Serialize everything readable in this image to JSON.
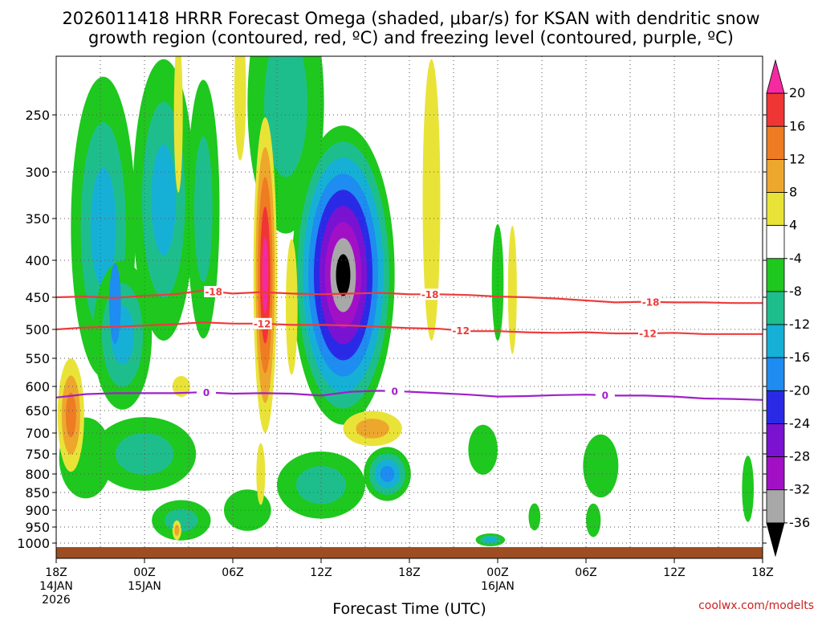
{
  "chart_data": {
    "type": "contour",
    "title_line1": "2026011418 HRRR Forecast Omega (shaded, μbar/s) for KSAN with dendritic snow",
    "title_line2": "growth region (contoured, red, ºC) and freezing level (contoured, purple, ºC)",
    "xlabel": "Forecast Time (UTC)",
    "credit": "coolwx.com/modelts",
    "x_range": [
      0,
      48
    ],
    "pressure_levels": [
      250,
      300,
      350,
      400,
      450,
      500,
      550,
      600,
      650,
      700,
      750,
      800,
      850,
      900,
      950,
      1000
    ],
    "y_tick_labels": [
      "250",
      "300",
      "350",
      "400",
      "450",
      "500",
      "550",
      "600",
      "650",
      "700",
      "750",
      "800",
      "850",
      "900",
      "950",
      "1000"
    ],
    "x_ticks": [
      {
        "hour": 0,
        "lines": [
          "18Z",
          "14JAN",
          "2026"
        ]
      },
      {
        "hour": 6,
        "lines": [
          "00Z",
          "15JAN"
        ]
      },
      {
        "hour": 12,
        "lines": [
          "06Z"
        ]
      },
      {
        "hour": 18,
        "lines": [
          "12Z"
        ]
      },
      {
        "hour": 24,
        "lines": [
          "18Z"
        ]
      },
      {
        "hour": 30,
        "lines": [
          "00Z",
          "16JAN"
        ]
      },
      {
        "hour": 36,
        "lines": [
          "06Z"
        ]
      },
      {
        "hour": 42,
        "lines": [
          "12Z"
        ]
      },
      {
        "hour": 48,
        "lines": [
          "18Z"
        ]
      }
    ],
    "colorbar": {
      "labels": [
        "20",
        "16",
        "12",
        "8",
        "4",
        "-4",
        "-8",
        "-12",
        "-16",
        "-20",
        "-24",
        "-28",
        "-32",
        "-36"
      ],
      "colors": [
        "#f52aa0",
        "#f03535",
        "#ee7c22",
        "#eea72d",
        "#e9e338",
        "#ffffff",
        "#1ec81e",
        "#1ebe8c",
        "#16b0d6",
        "#1e8cf0",
        "#2a2ae6",
        "#7a12d2",
        "#a210c6",
        "#a8a8a8",
        "#000000"
      ]
    },
    "contours": [
      {
        "name": "-18",
        "color": "#ee3b3b",
        "label": "-18",
        "points": [
          [
            0,
            450
          ],
          [
            2,
            449
          ],
          [
            4,
            451
          ],
          [
            6,
            448
          ],
          [
            8,
            446
          ],
          [
            10,
            441
          ],
          [
            12,
            445
          ],
          [
            14,
            443
          ],
          [
            16,
            445
          ],
          [
            18,
            446
          ],
          [
            20,
            445
          ],
          [
            22,
            444
          ],
          [
            24,
            446
          ],
          [
            26,
            446
          ],
          [
            28,
            447
          ],
          [
            30,
            449
          ],
          [
            32,
            450
          ],
          [
            34,
            452
          ],
          [
            36,
            455
          ],
          [
            38,
            458
          ],
          [
            40,
            457
          ],
          [
            42,
            458
          ],
          [
            44,
            458
          ],
          [
            46,
            459
          ],
          [
            48,
            459
          ]
        ],
        "label_hours": [
          10.7,
          25.4,
          40.4
        ]
      },
      {
        "name": "-12",
        "color": "#ee3b3b",
        "label": "-12",
        "points": [
          [
            0,
            500
          ],
          [
            2,
            497
          ],
          [
            4,
            496
          ],
          [
            6,
            494
          ],
          [
            8,
            492
          ],
          [
            10,
            489
          ],
          [
            12,
            491
          ],
          [
            14,
            491
          ],
          [
            16,
            493
          ],
          [
            18,
            493
          ],
          [
            20,
            494
          ],
          [
            22,
            496
          ],
          [
            24,
            498
          ],
          [
            26,
            499
          ],
          [
            28,
            503
          ],
          [
            30,
            503
          ],
          [
            32,
            505
          ],
          [
            34,
            506
          ],
          [
            36,
            505
          ],
          [
            38,
            507
          ],
          [
            40,
            507
          ],
          [
            42,
            506
          ],
          [
            44,
            508
          ],
          [
            46,
            508
          ],
          [
            48,
            508
          ]
        ],
        "label_hours": [
          14.0,
          27.5,
          40.2
        ]
      },
      {
        "name": "0",
        "color": "#a020c8",
        "label": "0",
        "points": [
          [
            0,
            623
          ],
          [
            2,
            616
          ],
          [
            4,
            614
          ],
          [
            6,
            614
          ],
          [
            8,
            614
          ],
          [
            10,
            612
          ],
          [
            12,
            615
          ],
          [
            14,
            614
          ],
          [
            16,
            615
          ],
          [
            18,
            619
          ],
          [
            20,
            611
          ],
          [
            22,
            609
          ],
          [
            24,
            611
          ],
          [
            26,
            614
          ],
          [
            28,
            617
          ],
          [
            30,
            621
          ],
          [
            32,
            620
          ],
          [
            34,
            618
          ],
          [
            36,
            617
          ],
          [
            38,
            619
          ],
          [
            40,
            619
          ],
          [
            42,
            621
          ],
          [
            44,
            625
          ],
          [
            46,
            626
          ],
          [
            48,
            628
          ]
        ],
        "label_hours": [
          10.2,
          23.0,
          37.3
        ]
      }
    ],
    "omega_cells": [
      {
        "t": 3.2,
        "p": 360,
        "rt": 2.2,
        "rp": 170,
        "levels": [
          -4,
          -8,
          -12
        ]
      },
      {
        "t": 7.3,
        "p": 330,
        "rt": 2.1,
        "rp": 150,
        "levels": [
          -4,
          -8,
          -12
        ]
      },
      {
        "t": 4.5,
        "p": 510,
        "rt": 2.0,
        "rp": 120,
        "levels": [
          -4,
          -8,
          -12
        ]
      },
      {
        "t": 4.0,
        "p": 460,
        "rt": 0.4,
        "rp": 60,
        "levels": [
          -16
        ]
      },
      {
        "t": 10.0,
        "p": 340,
        "rt": 1.1,
        "rp": 140,
        "levels": [
          -4,
          -8
        ]
      },
      {
        "t": 15.6,
        "p": 240,
        "rt": 2.6,
        "rp": 120,
        "levels": [
          -4,
          -8
        ]
      },
      {
        "t": 19.5,
        "p": 420,
        "rt": 3.5,
        "rp": 190,
        "levels": [
          -4,
          -8,
          -12,
          -16,
          -20,
          -24,
          -28,
          -32,
          -36
        ]
      },
      {
        "t": 30.0,
        "p": 430,
        "rt": 0.4,
        "rp": 80,
        "levels": [
          -4
        ]
      },
      {
        "t": 6.0,
        "p": 750,
        "rt": 3.5,
        "rp": 90,
        "levels": [
          -4,
          -8
        ]
      },
      {
        "t": 2.0,
        "p": 760,
        "rt": 1.8,
        "rp": 100,
        "levels": [
          -4
        ]
      },
      {
        "t": 18.0,
        "p": 830,
        "rt": 3.0,
        "rp": 90,
        "levels": [
          -4,
          -8
        ]
      },
      {
        "t": 22.5,
        "p": 800,
        "rt": 1.6,
        "rp": 70,
        "levels": [
          -4,
          -8,
          -12,
          -16
        ]
      },
      {
        "t": 29.0,
        "p": 740,
        "rt": 1.0,
        "rp": 60,
        "levels": [
          -4
        ]
      },
      {
        "t": 37.0,
        "p": 780,
        "rt": 1.2,
        "rp": 80,
        "levels": [
          -4
        ]
      },
      {
        "t": 47.0,
        "p": 840,
        "rt": 0.4,
        "rp": 90,
        "levels": [
          -4
        ]
      },
      {
        "t": 29.5,
        "p": 990,
        "rt": 1.0,
        "rp": 20,
        "levels": [
          -4,
          -8,
          -12
        ]
      },
      {
        "t": 13.0,
        "p": 900,
        "rt": 1.6,
        "rp": 60,
        "levels": [
          -4
        ]
      },
      {
        "t": 8.5,
        "p": 930,
        "rt": 2.0,
        "rp": 60,
        "levels": [
          -4,
          -8
        ]
      },
      {
        "t": 36.5,
        "p": 930,
        "rt": 0.5,
        "rp": 50,
        "levels": [
          -4
        ]
      },
      {
        "t": 32.5,
        "p": 920,
        "rt": 0.4,
        "rp": 40,
        "levels": [
          -4
        ]
      }
    ],
    "omega_pos_cells": [
      {
        "t": 1.0,
        "p": 660,
        "rt": 0.9,
        "rp": 120,
        "levels": [
          4,
          8,
          12
        ]
      },
      {
        "t": 14.2,
        "p": 420,
        "rt": 0.8,
        "rp": 200,
        "levels": [
          4,
          8,
          12,
          16,
          20
        ]
      },
      {
        "t": 8.3,
        "p": 250,
        "rt": 0.3,
        "rp": 70,
        "levels": [
          4
        ]
      },
      {
        "t": 25.5,
        "p": 330,
        "rt": 0.6,
        "rp": 150,
        "levels": [
          4
        ]
      },
      {
        "t": 31.0,
        "p": 440,
        "rt": 0.3,
        "rp": 90,
        "levels": [
          4
        ]
      },
      {
        "t": 21.5,
        "p": 690,
        "rt": 2.0,
        "rp": 40,
        "levels": [
          4,
          8
        ]
      },
      {
        "t": 13.9,
        "p": 800,
        "rt": 0.3,
        "rp": 80,
        "levels": [
          4
        ]
      },
      {
        "t": 8.2,
        "p": 960,
        "rt": 0.3,
        "rp": 30,
        "levels": [
          4,
          8
        ]
      },
      {
        "t": 16.0,
        "p": 465,
        "rt": 0.4,
        "rp": 100,
        "levels": [
          4
        ]
      },
      {
        "t": 12.5,
        "p": 230,
        "rt": 0.4,
        "rp": 60,
        "levels": [
          4
        ]
      },
      {
        "t": 8.5,
        "p": 600,
        "rt": 0.6,
        "rp": 20,
        "levels": [
          4
        ]
      }
    ]
  }
}
